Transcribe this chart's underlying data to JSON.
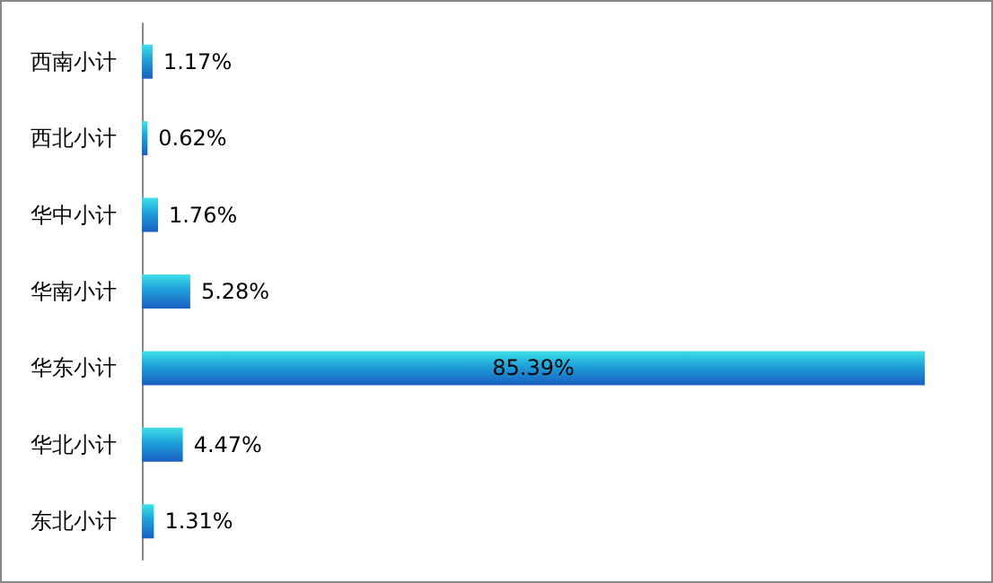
{
  "chart_data": {
    "type": "bar",
    "orientation": "horizontal",
    "categories": [
      "西南小计",
      "西北小计",
      "华中小计",
      "华南小计",
      "华东小计",
      "华北小计",
      "东北小计"
    ],
    "values": [
      1.17,
      0.62,
      1.76,
      5.28,
      85.39,
      4.47,
      1.31
    ],
    "value_labels": [
      "1.17%",
      "0.62%",
      "1.76%",
      "5.28%",
      "85.39%",
      "4.47%",
      "1.31%"
    ],
    "color": "#1e9fd8",
    "tick_labels": "y"
  }
}
